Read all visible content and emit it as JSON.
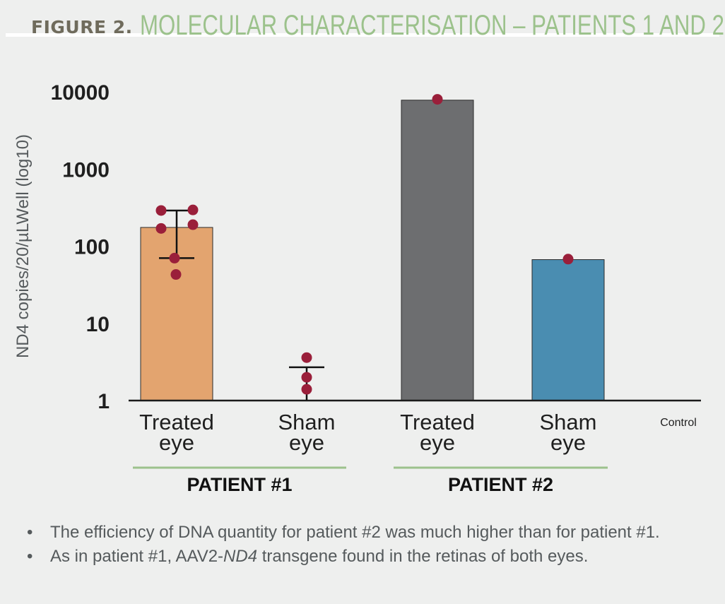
{
  "header": {
    "figure_label": "FIGURE 2.",
    "title": "MOLECULAR CHARACTERISATION – PATIENTS 1 AND 2"
  },
  "chart_data": {
    "type": "bar",
    "yscale": "log",
    "ylabel": "ND4 copies/20/µLWell (log10)",
    "ylim": [
      1,
      10000
    ],
    "yticks": [
      1,
      10,
      100,
      1000,
      10000
    ],
    "ytick_labels": [
      "1",
      "10",
      "100",
      "1000",
      "10000"
    ],
    "categories": [
      {
        "line1": "Treated",
        "line2": "eye"
      },
      {
        "line1": "Sham",
        "line2": "eye"
      },
      {
        "line1": "Treated",
        "line2": "eye"
      },
      {
        "line1": "Sham",
        "line2": "eye"
      }
    ],
    "extra_category_label": "Control",
    "bars": [
      {
        "category_index": 0,
        "value": 175,
        "color": "#e3a46f",
        "points": [
          290,
          295,
          170,
          190,
          70,
          43
        ],
        "error": [
          70,
          290
        ]
      },
      {
        "category_index": 1,
        "value": null,
        "color": null,
        "points": [
          3.6,
          2.0,
          1.4
        ],
        "error": [
          null,
          2.7
        ]
      },
      {
        "category_index": 2,
        "value": 7800,
        "color": "#6d6e70",
        "points": [
          8000
        ],
        "error": null
      },
      {
        "category_index": 3,
        "value": 67,
        "color": "#4a8db1",
        "points": [
          68
        ],
        "error": null
      }
    ],
    "point_color": "#9a1f3a",
    "groups": [
      {
        "label": "PATIENT #1",
        "from": 0,
        "to": 1
      },
      {
        "label": "PATIENT #2",
        "from": 2,
        "to": 3
      }
    ],
    "group_line_color": "#9cc28c"
  },
  "bullets": [
    {
      "text_before": "The efficiency of DNA quantity for patient #2 was much higher than for patient #1.",
      "italic": "",
      "text_after": ""
    },
    {
      "text_before": "As in patient #1, AAV2-",
      "italic": "ND4",
      "text_after": " transgene found in the retinas of both eyes."
    }
  ],
  "bullet_char": "•"
}
